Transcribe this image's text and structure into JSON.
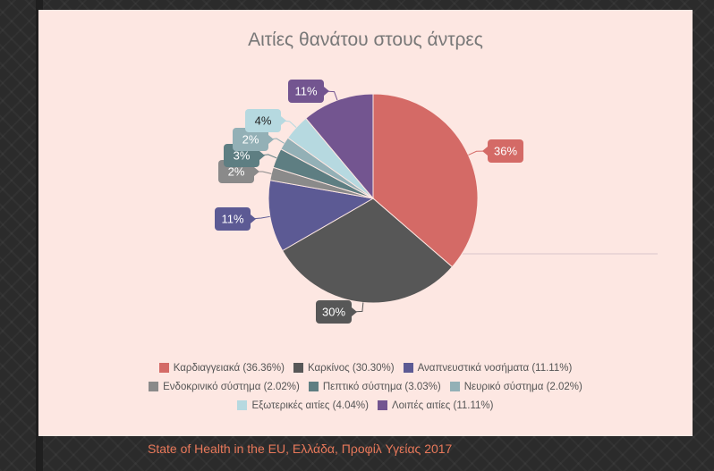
{
  "source_caption": "State of Health in the EU, Ελλάδα,  Προφίλ Υγείας 2017",
  "chart_data": {
    "type": "pie",
    "title": "Αιτίες θανάτου στους άντρες",
    "slices": [
      {
        "name": "Καρδιαγγειακά",
        "value": 36.36,
        "label": "36%",
        "color": "#d46a66",
        "legend": "Καρδιαγγειακά (36.36%)"
      },
      {
        "name": "Καρκίνος",
        "value": 30.3,
        "label": "30%",
        "color": "#575757",
        "legend": "Καρκίνος (30.30%)"
      },
      {
        "name": "Αναπνευστικά νοσήματα",
        "value": 11.11,
        "label": "11%",
        "color": "#5c5a94",
        "legend": "Αναπνευστικά νοσήματα (11.11%)"
      },
      {
        "name": "Ενδοκρινικό σύστημα",
        "value": 2.02,
        "label": "2%",
        "color": "#8a8a8a",
        "legend": "Ενδοκρινικό σύστημα (2.02%)"
      },
      {
        "name": "Πεπτικό σύστημα",
        "value": 3.03,
        "label": "3%",
        "color": "#5e7e82",
        "legend": "Πεπτικό σύστημα (3.03%)"
      },
      {
        "name": "Νευρικό σύστημα",
        "value": 2.02,
        "label": "2%",
        "color": "#93b0b6",
        "legend": "Νευρικό σύστημα (2.02%)"
      },
      {
        "name": "Εξωτερικές αιτίες",
        "value": 4.04,
        "label": "4%",
        "color": "#b6d9e0",
        "legend": "Εξωτερικές αιτίες (4.04%)"
      },
      {
        "name": "Λοιπές αιτίες",
        "value": 11.11,
        "label": "11%",
        "color": "#735590",
        "legend": "Λοιπές αιτίες (11.11%)"
      }
    ],
    "legend_rows": [
      [
        0,
        1,
        2
      ],
      [
        3,
        4,
        5
      ],
      [
        6,
        7
      ]
    ],
    "legend_position": "bottom"
  }
}
